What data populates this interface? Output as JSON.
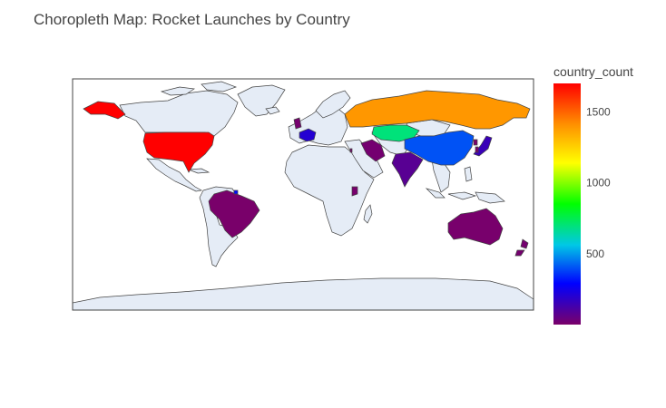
{
  "title": "Choropleth Map: Rocket Launches by Country",
  "chart_data": {
    "type": "choropleth",
    "title": "Choropleth Map: Rocket Launches by Country",
    "value_field": "country_count",
    "colorscale": [
      "#7a0069",
      "#0000ff",
      "#00c8e6",
      "#00ff00",
      "#ffff00",
      "#ff9000",
      "#ff0000"
    ],
    "color_range": [
      1,
      1700
    ],
    "colorbar": {
      "title": "country_count",
      "ticks": [
        500,
        1000,
        1500
      ],
      "tick_labels": [
        "500",
        "1000",
        "1500"
      ]
    },
    "regions": [
      {
        "name": "United States",
        "value": 1700
      },
      {
        "name": "Russia",
        "value": 1400
      },
      {
        "name": "Kazakhstan",
        "value": 700
      },
      {
        "name": "China",
        "value": 400
      },
      {
        "name": "France",
        "value": 200
      },
      {
        "name": "Japan",
        "value": 150
      },
      {
        "name": "India",
        "value": 80
      },
      {
        "name": "Iran",
        "value": 14
      },
      {
        "name": "Brazil",
        "value": 3
      },
      {
        "name": "Australia",
        "value": 6
      },
      {
        "name": "New Zealand",
        "value": 13
      },
      {
        "name": "Kenya",
        "value": 9
      },
      {
        "name": "Israel",
        "value": 11
      },
      {
        "name": "North Korea",
        "value": 5
      },
      {
        "name": "South Korea",
        "value": 3
      },
      {
        "name": "United Kingdom",
        "value": 10
      },
      {
        "name": "French Guiana",
        "value": 300
      }
    ]
  }
}
